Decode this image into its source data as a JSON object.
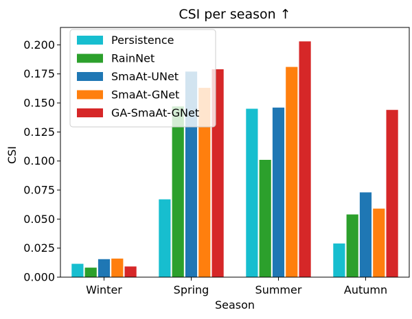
{
  "chart_data": {
    "type": "bar",
    "title": "CSI per season ↑",
    "xlabel": "Season",
    "ylabel": "CSI",
    "categories": [
      "Winter",
      "Spring",
      "Summer",
      "Autumn"
    ],
    "ylim": [
      0,
      0.215
    ],
    "yticks": [
      "0.000",
      "0.025",
      "0.050",
      "0.075",
      "0.100",
      "0.125",
      "0.150",
      "0.175",
      "0.200"
    ],
    "legend_position": "top-left",
    "series": [
      {
        "name": "Persistence",
        "color": "#17becf",
        "values": [
          0.0115,
          0.067,
          0.145,
          0.029
        ]
      },
      {
        "name": "RainNet",
        "color": "#2ca02c",
        "values": [
          0.0082,
          0.147,
          0.101,
          0.054
        ]
      },
      {
        "name": "SmaAt-UNet",
        "color": "#1f77b4",
        "values": [
          0.0155,
          0.177,
          0.146,
          0.073
        ]
      },
      {
        "name": "SmaAt-GNet",
        "color": "#ff7f0e",
        "values": [
          0.016,
          0.163,
          0.181,
          0.059
        ]
      },
      {
        "name": "GA-SmaAt-GNet",
        "color": "#d62728",
        "values": [
          0.0092,
          0.179,
          0.203,
          0.144
        ]
      }
    ]
  }
}
